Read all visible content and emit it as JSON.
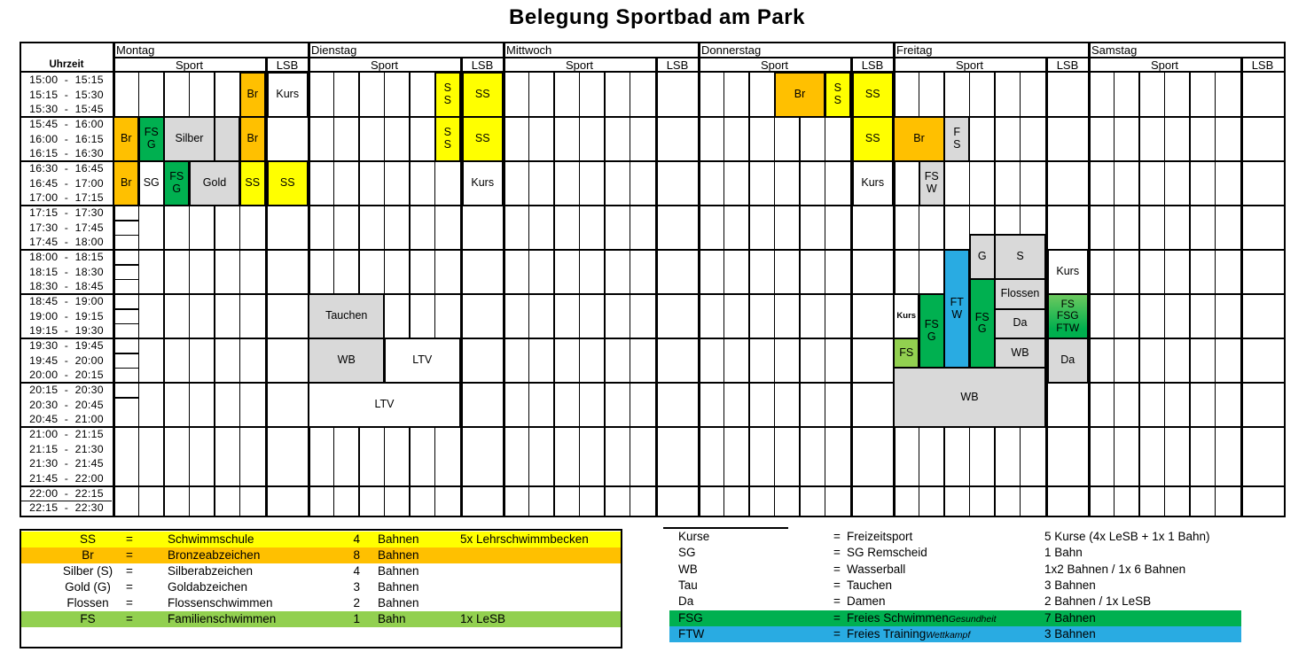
{
  "title": "Belegung Sportbad am Park",
  "colors": {
    "yellow": "#FFFF00",
    "orange": "#FFC000",
    "green": "#00B050",
    "lightgreen": "#92D050",
    "blue": "#29ABE2",
    "gray": "#D9D9D9",
    "white": "#FFFFFF"
  },
  "schedule": {
    "time_header": "Uhrzeit",
    "sport_label": "Sport",
    "lsb_label": "LSB",
    "days": [
      "Montag",
      "Dienstag",
      "Mittwoch",
      "Donnerstag",
      "Freitag",
      "Samstag"
    ],
    "time_slots": [
      "15:00  -  15:15",
      "15:15  -  15:30",
      "15:30  -  15:45",
      "15:45  -  16:00",
      "16:00  -  16:15",
      "16:15  -  16:30",
      "16:30  -  16:45",
      "16:45  -  17:00",
      "17:00  -  17:15",
      "17:15  -  17:30",
      "17:30  -  17:45",
      "17:45  -  18:00",
      "18:00  -  18:15",
      "18:15  -  18:30",
      "18:30  -  18:45",
      "18:45  -  19:00",
      "19:00  -  19:15",
      "19:15  -  19:30",
      "19:30  -  19:45",
      "19:45  -  20:00",
      "20:00  -  20:15",
      "20:15  -  20:30",
      "20:30  -  20:45",
      "20:45  -  21:00",
      "21:00  -  21:15",
      "21:15  -  21:30",
      "21:30  -  21:45",
      "21:45  -  22:00",
      "22:00  -  22:15",
      "22:15  -  22:30"
    ],
    "blocks": [
      {
        "d": 0,
        "lane": 6,
        "span": 1,
        "from": "15:00",
        "to": "15:45",
        "label": "Br",
        "color": "orange"
      },
      {
        "d": 0,
        "lane": "LSB",
        "span": 1,
        "from": "15:00",
        "to": "15:45",
        "label": "Kurs",
        "color": "white"
      },
      {
        "d": 0,
        "lane": 1,
        "span": 1,
        "from": "15:45",
        "to": "16:30",
        "label": "Br",
        "color": "orange"
      },
      {
        "d": 0,
        "lane": 2,
        "span": 1,
        "from": "15:45",
        "to": "16:30",
        "label": "FS\nG",
        "color": "green"
      },
      {
        "d": 0,
        "lane": 3,
        "span": 2,
        "from": "15:45",
        "to": "16:30",
        "label": "Silber",
        "color": "gray"
      },
      {
        "d": 0,
        "lane": 5,
        "span": 1,
        "from": "15:45",
        "to": "16:30",
        "label": "",
        "color": "gray"
      },
      {
        "d": 0,
        "lane": 6,
        "span": 1,
        "from": "15:45",
        "to": "16:30",
        "label": "Br",
        "color": "orange"
      },
      {
        "d": 0,
        "lane": 1,
        "span": 1,
        "from": "16:30",
        "to": "17:15",
        "label": "Br",
        "color": "orange"
      },
      {
        "d": 0,
        "lane": 2,
        "span": 1,
        "from": "16:30",
        "to": "17:15",
        "label": "SG",
        "color": "white"
      },
      {
        "d": 0,
        "lane": 3,
        "span": 1,
        "from": "16:30",
        "to": "17:15",
        "label": "FS\nG",
        "color": "green"
      },
      {
        "d": 0,
        "lane": 4,
        "span": 2,
        "from": "16:30",
        "to": "17:15",
        "label": "Gold",
        "color": "gray"
      },
      {
        "d": 0,
        "lane": 6,
        "span": 1,
        "from": "16:30",
        "to": "17:15",
        "label": "SS",
        "color": "yellow"
      },
      {
        "d": 0,
        "lane": "LSB",
        "span": 1,
        "from": "16:30",
        "to": "17:15",
        "label": "SS",
        "color": "yellow"
      },
      {
        "d": 1,
        "lane": 6,
        "span": 1,
        "from": "15:00",
        "to": "15:45",
        "label": "S\nS",
        "color": "yellow"
      },
      {
        "d": 1,
        "lane": "LSB",
        "span": 1,
        "from": "15:00",
        "to": "15:45",
        "label": "SS",
        "color": "yellow"
      },
      {
        "d": 1,
        "lane": 6,
        "span": 1,
        "from": "15:45",
        "to": "16:30",
        "label": "S\nS",
        "color": "yellow"
      },
      {
        "d": 1,
        "lane": "LSB",
        "span": 1,
        "from": "15:45",
        "to": "16:30",
        "label": "SS",
        "color": "yellow"
      },
      {
        "d": 1,
        "lane": "LSB",
        "span": 1,
        "from": "16:30",
        "to": "17:15",
        "label": "Kurs",
        "color": "white"
      },
      {
        "d": 1,
        "lane": 1,
        "span": 3,
        "from": "18:45",
        "to": "19:30",
        "label": "Tauchen",
        "color": "gray"
      },
      {
        "d": 1,
        "lane": 1,
        "span": 3,
        "from": "19:30",
        "to": "20:15",
        "label": "WB",
        "color": "gray"
      },
      {
        "d": 1,
        "lane": 4,
        "span": 3,
        "from": "19:30",
        "to": "20:15",
        "label": "LTV",
        "color": "white"
      },
      {
        "d": 1,
        "lane": 1,
        "span": 6,
        "from": "20:15",
        "to": "21:00",
        "label": "LTV",
        "color": "white"
      },
      {
        "d": 3,
        "lane": 4,
        "span": 2,
        "from": "15:00",
        "to": "15:45",
        "label": "Br",
        "color": "orange"
      },
      {
        "d": 3,
        "lane": 6,
        "span": 1,
        "from": "15:00",
        "to": "15:45",
        "label": "S\nS",
        "color": "yellow"
      },
      {
        "d": 3,
        "lane": "LSB",
        "span": 1,
        "from": "15:00",
        "to": "15:45",
        "label": "SS",
        "color": "yellow"
      },
      {
        "d": 3,
        "lane": "LSB",
        "span": 1,
        "from": "15:45",
        "to": "16:30",
        "label": "SS",
        "color": "yellow"
      },
      {
        "d": 3,
        "lane": "LSB",
        "span": 1,
        "from": "16:30",
        "to": "17:15",
        "label": "Kurs",
        "color": "white"
      },
      {
        "d": 4,
        "lane": 1,
        "span": 2,
        "from": "15:45",
        "to": "16:30",
        "label": "Br",
        "color": "orange"
      },
      {
        "d": 4,
        "lane": 3,
        "span": 1,
        "from": "15:45",
        "to": "16:30",
        "label": "F\nS",
        "color": "gray"
      },
      {
        "d": 4,
        "lane": 2,
        "span": 1,
        "from": "16:30",
        "to": "17:15",
        "label": "FS\nW",
        "color": "gray"
      },
      {
        "d": 4,
        "lane": 4,
        "span": 1,
        "from": "17:45",
        "to": "18:30",
        "label": "G",
        "color": "gray"
      },
      {
        "d": 4,
        "lane": 5,
        "span": 2,
        "from": "17:45",
        "to": "18:30",
        "label": "S",
        "color": "gray"
      },
      {
        "d": 4,
        "lane": "LSB",
        "span": 1,
        "from": "18:00",
        "to": "18:45",
        "label": "Kurs",
        "color": "white"
      },
      {
        "d": 4,
        "lane": 3,
        "span": 1,
        "from": "18:00",
        "to": "20:00",
        "label": "FT\nW",
        "color": "blue"
      },
      {
        "d": 4,
        "lane": 1,
        "span": 1,
        "from": "18:45",
        "to": "19:30",
        "label": "Kurs",
        "color": "white",
        "small": true
      },
      {
        "d": 4,
        "lane": 2,
        "span": 1,
        "from": "18:45",
        "to": "20:00",
        "label": "FS\nG",
        "color": "green"
      },
      {
        "d": 4,
        "lane": 4,
        "span": 1,
        "from": "18:30",
        "to": "20:00",
        "label": "FS\nG",
        "color": "green"
      },
      {
        "d": 4,
        "lane": 5,
        "span": 2,
        "from": "18:30",
        "to": "19:00",
        "label": "Flossen",
        "color": "gray"
      },
      {
        "d": 4,
        "lane": 5,
        "span": 2,
        "from": "19:00",
        "to": "19:30",
        "label": "Da",
        "color": "gray"
      },
      {
        "d": 4,
        "lane": 5,
        "span": 2,
        "from": "19:30",
        "to": "20:00",
        "label": "WB",
        "color": "gray"
      },
      {
        "d": 4,
        "lane": "LSB",
        "span": 1,
        "from": "18:45",
        "to": "19:30",
        "label": "FS\nFSG\nFTW",
        "color": "gradient"
      },
      {
        "d": 4,
        "lane": 1,
        "span": 1,
        "from": "19:30",
        "to": "20:00",
        "label": "FS",
        "color": "lightgreen"
      },
      {
        "d": 4,
        "lane": "LSB",
        "span": 1,
        "from": "19:30",
        "to": "20:15",
        "label": "Da",
        "color": "gray"
      },
      {
        "d": 4,
        "lane": 1,
        "span": 6,
        "from": "20:00",
        "to": "21:00",
        "label": "WB",
        "color": "gray"
      }
    ]
  },
  "legend_left": {
    "rows": [
      {
        "symbol": "SS",
        "eq": "=",
        "name": "Schwimmschule",
        "count": "4",
        "unit": "Bahnen",
        "extra": "5x Lehrschwimmbecken",
        "band": "yellow"
      },
      {
        "symbol": "Br",
        "eq": "=",
        "name": "Bronzeabzeichen",
        "count": "8",
        "unit": "Bahnen",
        "extra": "",
        "band": "orange"
      },
      {
        "symbol": "Silber (S)",
        "eq": "=",
        "name": "Silberabzeichen",
        "count": "4",
        "unit": "Bahnen",
        "extra": "",
        "band": ""
      },
      {
        "symbol": "Gold (G)",
        "eq": "=",
        "name": "Goldabzeichen",
        "count": "3",
        "unit": "Bahnen",
        "extra": "",
        "band": ""
      },
      {
        "symbol": "Flossen",
        "eq": "=",
        "name": "Flossenschwimmen",
        "count": "2",
        "unit": "Bahnen",
        "extra": "",
        "band": ""
      },
      {
        "symbol": "FS",
        "eq": "=",
        "name": "Familienschwimmen",
        "count": "1",
        "unit": "Bahn",
        "extra": "1x LeSB",
        "band": "lightgreen"
      }
    ]
  },
  "legend_right": {
    "rows": [
      {
        "symbol": "Kurse",
        "eq": "=",
        "name": "Freizeitsport",
        "note": "",
        "count": "5 Kurse (4x LeSB + 1x 1 Bahn)",
        "band": ""
      },
      {
        "symbol": "SG",
        "eq": "=",
        "name": "SG Remscheid",
        "note": "",
        "count": "1 Bahn",
        "band": ""
      },
      {
        "symbol": "WB",
        "eq": "=",
        "name": "Wasserball",
        "note": "",
        "count": "1x2 Bahnen / 1x 6 Bahnen",
        "band": ""
      },
      {
        "symbol": "Tau",
        "eq": "=",
        "name": "Tauchen",
        "note": "",
        "count": "3 Bahnen",
        "band": ""
      },
      {
        "symbol": "Da",
        "eq": "=",
        "name": "Damen",
        "note": "",
        "count": "2 Bahnen / 1x LeSB",
        "band": ""
      },
      {
        "symbol": "FSG",
        "eq": "=",
        "name": "Freies Schwimmen",
        "note": "Gesundheit",
        "count": "7 Bahnen",
        "band": "green"
      },
      {
        "symbol": "FTW",
        "eq": "=",
        "name": "Freies Training",
        "note": "Wettkampf",
        "count": "3 Bahnen",
        "band": "blue"
      }
    ]
  }
}
